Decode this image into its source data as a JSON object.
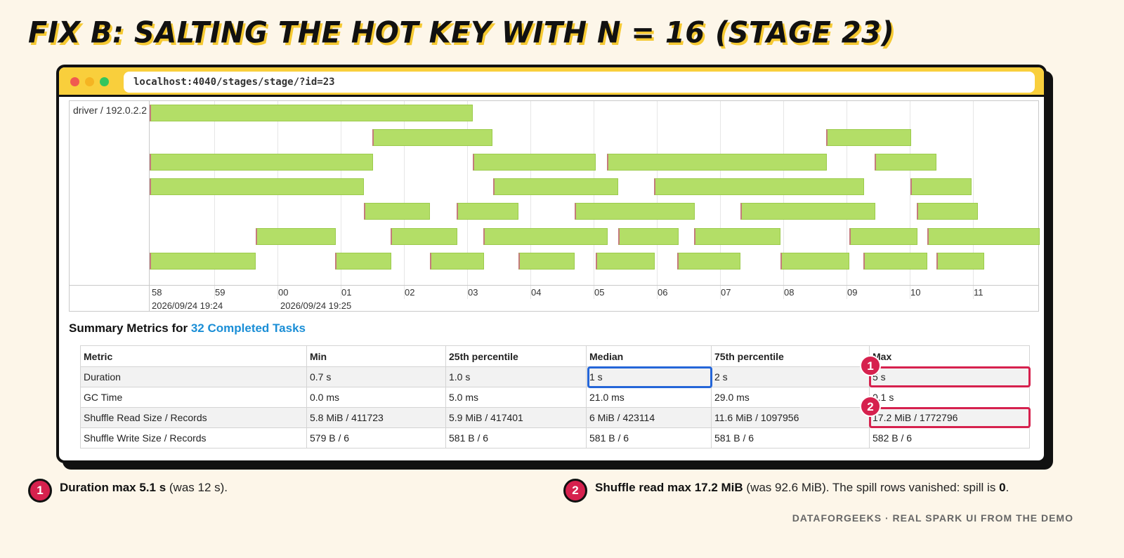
{
  "page": {
    "title": "Fix B: Salting the hot key with N = 16 (Stage 23)"
  },
  "browser": {
    "url": "localhost:4040/stages/stage/?id=23"
  },
  "timeline": {
    "executor_label": "driver / 192.0.2.2",
    "ticks": [
      "58",
      "59",
      "00",
      "01",
      "02",
      "03",
      "04",
      "05",
      "06",
      "07",
      "08",
      "09",
      "10",
      "11"
    ],
    "dates": [
      "2026/09/24 19:24",
      "2026/09/24 19:25"
    ]
  },
  "summary": {
    "prefix": "Summary Metrics for ",
    "link": "32 Completed Tasks"
  },
  "metrics_table": {
    "headers": [
      "Metric",
      "Min",
      "25th percentile",
      "Median",
      "75th percentile",
      "Max"
    ],
    "rows": [
      [
        "Duration",
        "0.7 s",
        "1.0 s",
        "1 s",
        "2 s",
        "5 s"
      ],
      [
        "GC Time",
        "0.0 ms",
        "5.0 ms",
        "21.0 ms",
        "29.0 ms",
        "0.1 s"
      ],
      [
        "Shuffle Read Size / Records",
        "5.8 MiB / 411723",
        "5.9 MiB / 417401",
        "6 MiB / 423114",
        "11.6 MiB / 1097956",
        "17.2 MiB / 1772796"
      ],
      [
        "Shuffle Write Size / Records",
        "579 B / 6",
        "581 B / 6",
        "581 B / 6",
        "581 B / 6",
        "582 B / 6"
      ]
    ]
  },
  "badges": [
    "1",
    "2"
  ],
  "notes": [
    {
      "number": "1",
      "bold": "Duration max 5.1 s",
      "text": " (was 12 s)."
    },
    {
      "number": "2",
      "bold": "Shuffle read max 17.2 MiB",
      "text": " (was 92.6 MiB). The spill rows vanished: spill is ",
      "bold2": "0",
      "end": "."
    }
  ],
  "footer": "DataForGeeks · Real Spark UI from the demo",
  "colors": {
    "accent_yellow": "#f9cf3c",
    "task_green": "#b3de67",
    "highlight_red": "#d6214e",
    "highlight_blue": "#2566d8",
    "link_blue": "#1a8ed6"
  }
}
